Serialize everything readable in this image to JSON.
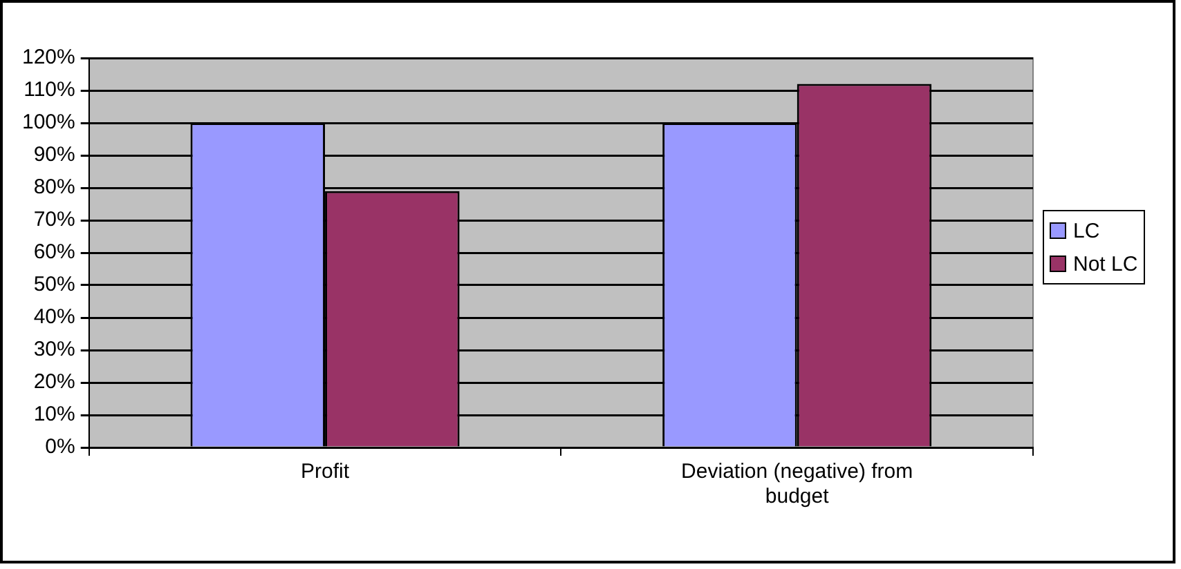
{
  "chart_data": {
    "type": "bar",
    "categories": [
      "Profit",
      "Deviation (negative) from budget"
    ],
    "series": [
      {
        "name": "LC",
        "color": "#9999ff",
        "values": [
          100,
          100
        ]
      },
      {
        "name": "Not LC",
        "color": "#993366",
        "values": [
          79,
          112
        ]
      }
    ],
    "ylim": [
      0,
      120
    ],
    "yticks": [
      {
        "value": 0,
        "label": "0%"
      },
      {
        "value": 10,
        "label": "10%"
      },
      {
        "value": 20,
        "label": "20%"
      },
      {
        "value": 30,
        "label": "30%"
      },
      {
        "value": 40,
        "label": "40%"
      },
      {
        "value": 50,
        "label": "50%"
      },
      {
        "value": 60,
        "label": "60%"
      },
      {
        "value": 70,
        "label": "70%"
      },
      {
        "value": 80,
        "label": "80%"
      },
      {
        "value": 90,
        "label": "90%"
      },
      {
        "value": 100,
        "label": "100%"
      },
      {
        "value": 110,
        "label": "110%"
      },
      {
        "value": 120,
        "label": "120%"
      }
    ],
    "grid": "y",
    "legend": "right"
  }
}
